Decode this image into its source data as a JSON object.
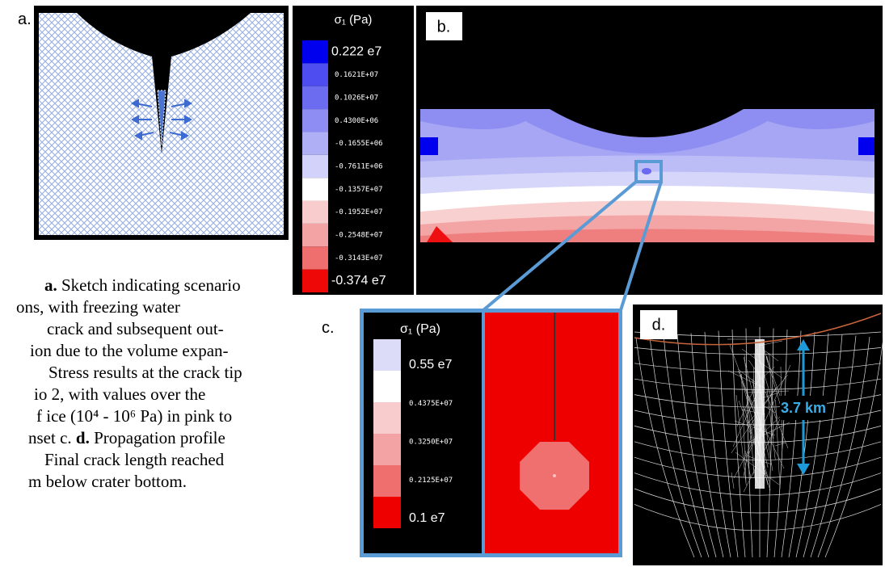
{
  "panels": {
    "a": {
      "label": "a."
    },
    "b": {
      "label": "b.",
      "legend": {
        "title": "σ₁ (Pa)",
        "labels": [
          "0.222 e7",
          "0.1621E+07",
          "0.1026E+07",
          "0.4300E+06",
          "-0.1655E+06",
          "-0.7611E+06",
          "-0.1357E+07",
          "-0.1952E+07",
          "-0.2548E+07",
          "-0.3143E+07",
          "-0.374 e7"
        ]
      }
    },
    "c": {
      "label": "c.",
      "legend": {
        "title": "σ₁ (Pa)",
        "labels": [
          "0.55 e7",
          "0.4375E+07",
          "0.3250E+07",
          "0.2125E+07",
          "0.1 e7"
        ]
      }
    },
    "d": {
      "label": "d.",
      "annotation": "3.7 km"
    }
  },
  "caption": {
    "lines": [
      [
        "a.",
        " Sketch indicating scenario"
      ],
      "ons, with freezing water",
      "crack and subsequent out-",
      "ion due to the volume expan-",
      "Stress results at the crack tip",
      "io 2, with values over the",
      "f ice (10⁴ - 10⁶ Pa) in pink to",
      [
        "nset c. ",
        "d.",
        " Propagation profile"
      ],
      "Final crack length reached",
      "m below crater bottom."
    ]
  }
}
